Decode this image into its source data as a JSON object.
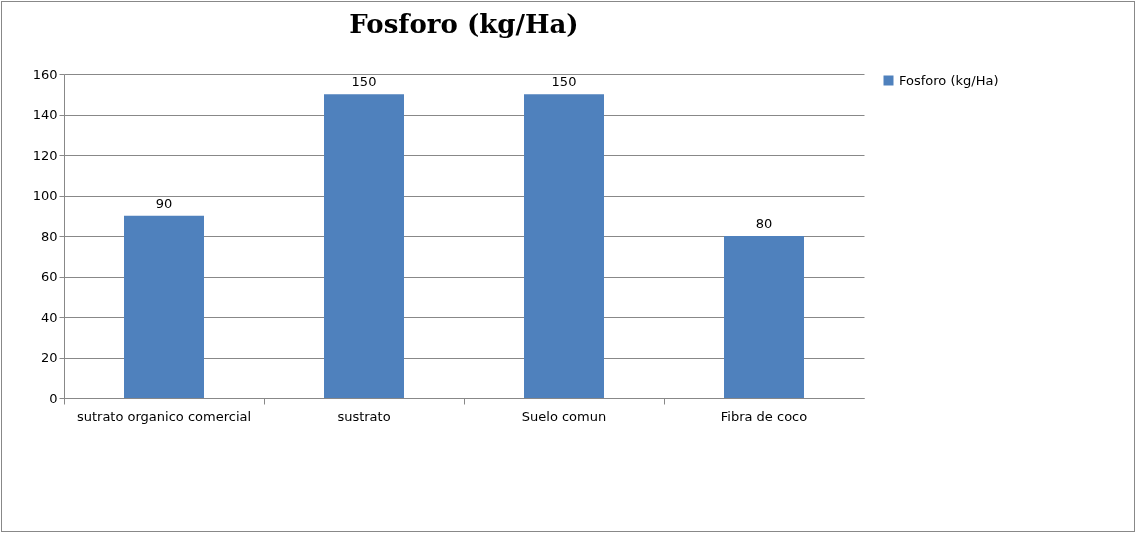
{
  "chart_data": {
    "type": "bar",
    "title": "Fosforo (kg/Ha)",
    "categories": [
      "sutrato organico comercial",
      "sustrato",
      "Suelo comun",
      "Fibra de coco"
    ],
    "series": [
      {
        "name": "Fosforo (kg/Ha)",
        "color": "#4f81bd",
        "values": [
          90,
          150,
          150,
          80
        ]
      }
    ],
    "ylim": [
      0,
      160
    ],
    "yticks": [
      0,
      20,
      40,
      60,
      80,
      100,
      120,
      140,
      160
    ],
    "grid": "y",
    "legend": "right",
    "data_labels": true
  }
}
